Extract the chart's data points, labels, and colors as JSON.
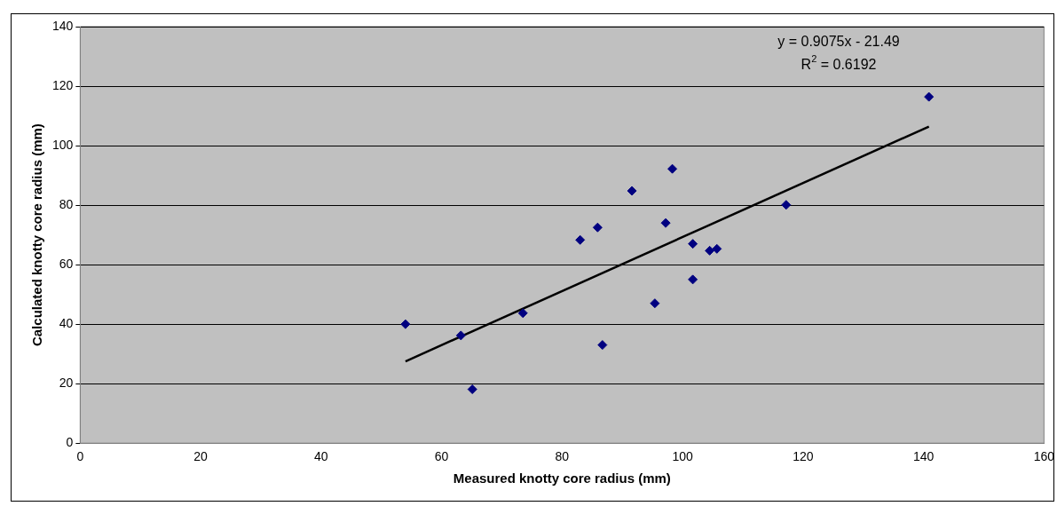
{
  "chart_data": {
    "type": "scatter",
    "xlabel": "Measured knotty core radius (mm)",
    "ylabel": "Calculated knotty core radius (mm)",
    "xlim": [
      0,
      160
    ],
    "xticks": [
      0,
      20,
      40,
      60,
      80,
      100,
      120,
      140,
      160
    ],
    "ylim": [
      0,
      140
    ],
    "yticks": [
      0,
      20,
      40,
      60,
      80,
      100,
      120,
      140
    ],
    "grid": "y",
    "legend": false,
    "marker": "diamond",
    "annotations": [
      "y = 0.9075x - 21.49",
      "R$^{2}$ = 0.6192"
    ],
    "series": [
      {
        "color": "#000080",
        "x": [
          54.0,
          63.2,
          65.1,
          73.5,
          83.0,
          85.9,
          86.7,
          91.6,
          95.4,
          97.2,
          98.3,
          101.7,
          101.7,
          104.5,
          105.7,
          117.2,
          140.9
        ],
        "values": [
          40.0,
          36.2,
          18.1,
          43.7,
          68.3,
          72.5,
          33.0,
          84.8,
          47.0,
          74.0,
          92.2,
          67.0,
          55.0,
          64.7,
          65.3,
          80.1,
          116.4
        ]
      },
      {
        "type": "line",
        "color": "#000000",
        "marker": "none",
        "line_style": "solid",
        "x": [
          54.0,
          140.9
        ],
        "values": [
          27.5,
          106.4
        ]
      }
    ]
  }
}
